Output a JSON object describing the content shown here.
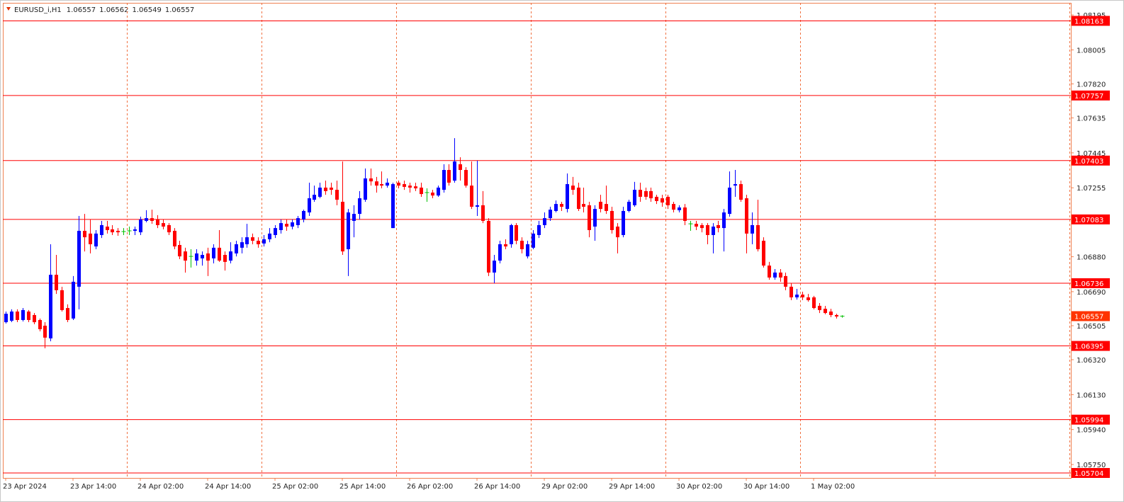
{
  "chart_data": {
    "type": "candlestick",
    "symbol": "EURUSD_i,H1",
    "up_color": "#0000ff",
    "down_color": "#ff0000",
    "doji_color": "#00c000",
    "level_color": "#ff0000",
    "price_label_color": "#ff3300",
    "grid": true,
    "ylim": [
      1.05677,
      1.08261
    ],
    "yticks": [
      1.08195,
      1.08005,
      {
        "value": 1.0782,
        "label": "1.07820"
      },
      1.07635,
      1.07445,
      1.07255,
      {
        "value": 1.0688,
        "label": "1.06880"
      },
      {
        "value": 1.0669,
        "label": "1.06690"
      },
      1.06505,
      {
        "value": 1.0632,
        "label": "1.06320"
      },
      {
        "value": 1.0613,
        "label": "1.06130"
      },
      {
        "value": 1.0594,
        "label": "1.05940"
      },
      {
        "value": 1.0575,
        "label": "1.05750"
      }
    ],
    "levels": [
      1.08163,
      1.07757,
      1.07403,
      1.07083,
      1.06736,
      1.06395,
      1.05994,
      1.05704
    ],
    "categories": [
      "23 Apr 2024",
      null,
      null,
      null,
      null,
      null,
      null,
      null,
      null,
      null,
      null,
      null,
      "23 Apr 14:00",
      null,
      null,
      null,
      null,
      null,
      null,
      null,
      null,
      null,
      null,
      null,
      "24 Apr 02:00",
      null,
      null,
      null,
      null,
      null,
      null,
      null,
      null,
      null,
      null,
      null,
      "24 Apr 14:00",
      null,
      null,
      null,
      null,
      null,
      null,
      null,
      null,
      null,
      null,
      null,
      "25 Apr 02:00",
      null,
      null,
      null,
      null,
      null,
      null,
      null,
      null,
      null,
      null,
      null,
      "25 Apr 14:00",
      null,
      null,
      null,
      null,
      null,
      null,
      null,
      null,
      null,
      null,
      null,
      "26 Apr 02:00",
      null,
      null,
      null,
      null,
      null,
      null,
      null,
      null,
      null,
      null,
      null,
      "26 Apr 14:00",
      null,
      null,
      null,
      null,
      null,
      null,
      null,
      null,
      null,
      null,
      null,
      "29 Apr 02:00",
      null,
      null,
      null,
      null,
      null,
      null,
      null,
      null,
      null,
      null,
      null,
      "29 Apr 14:00",
      null,
      null,
      null,
      null,
      null,
      null,
      null,
      null,
      null,
      null,
      null,
      "30 Apr 02:00",
      null,
      null,
      null,
      null,
      null,
      null,
      null,
      null,
      null,
      null,
      null,
      "30 Apr 14:00",
      null,
      null,
      null,
      null,
      null,
      null,
      null,
      null,
      null,
      null,
      null,
      "1 May 02:00",
      null,
      null,
      null,
      null,
      null
    ],
    "open": [
      1.06524,
      1.06532,
      1.06582,
      1.06536,
      1.06582,
      1.06563,
      1.06536,
      1.06505,
      1.06436,
      1.06782,
      1.06698,
      1.06601,
      1.06544,
      1.06717,
      1.07021,
      1.07006,
      1.06936,
      1.06998,
      1.07044,
      1.07029,
      1.07021,
      1.07017,
      1.07021,
      1.07021,
      1.07013,
      1.07075,
      1.0709,
      1.07083,
      1.07063,
      1.07052,
      1.07021,
      1.06944,
      1.06909,
      1.06882,
      1.06859,
      1.06871,
      1.06898,
      1.06871,
      1.06929,
      1.0689,
      1.06859,
      1.06898,
      1.06929,
      1.06948,
      1.06986,
      1.06967,
      1.06952,
      1.06975,
      1.06998,
      1.07025,
      1.07059,
      1.07044,
      1.07052,
      1.07083,
      1.07121,
      1.0719,
      1.07206,
      1.07256,
      1.07256,
      1.07244,
      1.07179,
      1.06921,
      1.07075,
      1.07113,
      1.0719,
      1.07306,
      1.0729,
      1.07275,
      1.07267,
      1.07036,
      1.07283,
      1.07275,
      1.07267,
      1.07263,
      1.07256,
      1.07229,
      1.07229,
      1.07213,
      1.07244,
      1.07352,
      1.07294,
      1.07383,
      1.07352,
      1.07267,
      1.07152,
      1.0716,
      1.07075,
      1.06794,
      1.06859,
      1.06948,
      1.06948,
      1.07052,
      1.06967,
      1.06882,
      1.06929,
      1.06998,
      1.07052,
      1.0709,
      1.07129,
      1.07167,
      1.0714,
      1.07267,
      1.07256,
      1.07167,
      1.0716,
      1.07044,
      1.07179,
      1.07167,
      1.07129,
      1.07044,
      1.06998,
      1.07129,
      1.0716,
      1.07244,
      1.07237,
      1.07237,
      1.07206,
      1.07198,
      1.07206,
      1.07167,
      1.07133,
      1.07148,
      1.07059,
      1.07059,
      1.07052,
      1.07052,
      1.06998,
      1.07052,
      1.07036,
      1.07113,
      1.07267,
      1.07275,
      1.07198,
      1.07006,
      1.07052,
      1.06967,
      1.06832,
      1.06767,
      1.06794,
      1.06775,
      1.06717,
      1.06659,
      1.06674,
      1.06659,
      1.06659,
      1.06613,
      1.06597,
      1.06582,
      1.06563,
      1.06557
    ],
    "high": [
      1.06582,
      1.06594,
      1.06594,
      1.06601,
      1.0659,
      1.06574,
      1.06544,
      1.06524,
      1.06948,
      1.0689,
      1.06717,
      1.06621,
      1.06775,
      1.07102,
      1.07113,
      1.07083,
      1.07025,
      1.07075,
      1.07075,
      1.07052,
      1.07036,
      1.07036,
      1.07044,
      1.07044,
      1.07098,
      1.07133,
      1.07136,
      1.07106,
      1.07083,
      1.07063,
      1.07036,
      1.06967,
      1.06929,
      1.06921,
      1.06921,
      1.06909,
      1.06929,
      1.06948,
      1.07025,
      1.06909,
      1.06959,
      1.06967,
      1.06986,
      1.07059,
      1.07006,
      1.06986,
      1.06998,
      1.07036,
      1.07052,
      1.07083,
      1.07083,
      1.07083,
      1.07102,
      1.07136,
      1.07283,
      1.07267,
      1.07283,
      1.07294,
      1.07283,
      1.07294,
      1.07398,
      1.0714,
      1.0716,
      1.07237,
      1.0736,
      1.0736,
      1.07314,
      1.07344,
      1.07306,
      1.07283,
      1.07294,
      1.07294,
      1.07283,
      1.07283,
      1.07283,
      1.07252,
      1.07244,
      1.07267,
      1.07383,
      1.07383,
      1.07525,
      1.07421,
      1.07367,
      1.07398,
      1.07402,
      1.07237,
      1.0709,
      1.0689,
      1.06967,
      1.06975,
      1.07059,
      1.07063,
      1.06986,
      1.06967,
      1.07025,
      1.07075,
      1.07121,
      1.07152,
      1.07186,
      1.07179,
      1.07333,
      1.07314,
      1.07283,
      1.07256,
      1.07179,
      1.0716,
      1.07217,
      1.07267,
      1.07152,
      1.07063,
      1.07152,
      1.0719,
      1.07287,
      1.07283,
      1.07256,
      1.07256,
      1.07217,
      1.07217,
      1.07217,
      1.07179,
      1.0716,
      1.07167,
      1.07075,
      1.07075,
      1.07063,
      1.07063,
      1.07063,
      1.07075,
      1.0714,
      1.07344,
      1.07352,
      1.07294,
      1.07217,
      1.07121,
      1.0719,
      1.06986,
      1.06852,
      1.06813,
      1.06813,
      1.06794,
      1.06736,
      1.06705,
      1.0669,
      1.06678,
      1.06667,
      1.06628,
      1.06613,
      1.06597,
      1.0657,
      1.06562
    ],
    "low": [
      1.06517,
      1.06524,
      1.06524,
      1.06528,
      1.06524,
      1.06513,
      1.06474,
      1.06382,
      1.0642,
      1.06678,
      1.06582,
      1.06524,
      1.06536,
      1.06594,
      1.06909,
      1.06898,
      1.06921,
      1.06982,
      1.07006,
      1.06998,
      1.06994,
      1.06998,
      1.06998,
      1.06998,
      1.06998,
      1.07067,
      1.07059,
      1.07036,
      1.07029,
      1.06998,
      1.06921,
      1.06867,
      1.06794,
      1.06821,
      1.06832,
      1.06832,
      1.06775,
      1.06844,
      1.06852,
      1.06805,
      1.06844,
      1.06882,
      1.06898,
      1.06929,
      1.06948,
      1.06929,
      1.06936,
      1.06959,
      1.06982,
      1.07006,
      1.07021,
      1.07029,
      1.07036,
      1.07067,
      1.07102,
      1.07179,
      1.07198,
      1.07217,
      1.07217,
      1.0716,
      1.0689,
      1.06775,
      1.06986,
      1.07083,
      1.07179,
      1.07267,
      1.07229,
      1.07252,
      1.07256,
      1.07036,
      1.07252,
      1.07244,
      1.07229,
      1.07237,
      1.07206,
      1.07179,
      1.07198,
      1.07206,
      1.07229,
      1.07267,
      1.07283,
      1.07294,
      1.07256,
      1.0714,
      1.07102,
      1.07063,
      1.06775,
      1.06736,
      1.06844,
      1.06921,
      1.06929,
      1.06948,
      1.06898,
      1.06871,
      1.06921,
      1.06982,
      1.07036,
      1.07075,
      1.07121,
      1.07129,
      1.07121,
      1.07217,
      1.07129,
      1.07121,
      1.06986,
      1.06967,
      1.07121,
      1.07113,
      1.07006,
      1.06898,
      1.06986,
      1.07121,
      1.07152,
      1.07179,
      1.0719,
      1.07179,
      1.07167,
      1.07152,
      1.0714,
      1.07121,
      1.07121,
      1.07052,
      1.07021,
      1.07025,
      1.07013,
      1.06948,
      1.06898,
      1.07013,
      1.06909,
      1.07098,
      1.07206,
      1.07179,
      1.06898,
      1.06948,
      1.06909,
      1.06821,
      1.06755,
      1.06755,
      1.06744,
      1.06698,
      1.06644,
      1.06647,
      1.06644,
      1.06636,
      1.06594,
      1.06574,
      1.06567,
      1.06551,
      1.06544,
      1.06549
    ],
    "close": [
      1.0657,
      1.06582,
      1.06536,
      1.0659,
      1.06536,
      1.06524,
      1.06486,
      1.0644,
      1.06782,
      1.06698,
      1.0659,
      1.06536,
      1.06744,
      1.07021,
      1.06986,
      1.06948,
      1.07006,
      1.07052,
      1.07025,
      1.07013,
      1.07013,
      1.07017,
      1.07021,
      1.07029,
      1.07083,
      1.0709,
      1.07075,
      1.07052,
      1.07044,
      1.07013,
      1.06936,
      1.06882,
      1.06859,
      1.06882,
      1.06898,
      1.0689,
      1.06859,
      1.06929,
      1.06859,
      1.06852,
      1.06909,
      1.06948,
      1.06959,
      1.06986,
      1.06967,
      1.06948,
      1.06975,
      1.07006,
      1.07036,
      1.07063,
      1.07044,
      1.07067,
      1.0709,
      1.07129,
      1.07198,
      1.07217,
      1.07256,
      1.07237,
      1.07244,
      1.0719,
      1.06909,
      1.07121,
      1.07113,
      1.07198,
      1.07306,
      1.0729,
      1.07267,
      1.07267,
      1.07283,
      1.07275,
      1.07267,
      1.0726,
      1.07256,
      1.07252,
      1.07221,
      1.07229,
      1.07213,
      1.07256,
      1.07352,
      1.07283,
      1.07398,
      1.07352,
      1.07267,
      1.07152,
      1.0716,
      1.07075,
      1.06794,
      1.06859,
      1.06948,
      1.06936,
      1.07052,
      1.06967,
      1.06921,
      1.06948,
      1.07006,
      1.07052,
      1.0709,
      1.07136,
      1.07167,
      1.07152,
      1.07275,
      1.07244,
      1.0714,
      1.07152,
      1.07025,
      1.0714,
      1.0714,
      1.07129,
      1.07025,
      1.06986,
      1.07129,
      1.07179,
      1.07244,
      1.07206,
      1.07206,
      1.07198,
      1.07183,
      1.07175,
      1.0716,
      1.07136,
      1.07148,
      1.07075,
      1.07059,
      1.07044,
      1.07036,
      1.06998,
      1.07044,
      1.07036,
      1.07121,
      1.07256,
      1.07275,
      1.0719,
      1.07006,
      1.07052,
      1.06921,
      1.06832,
      1.06767,
      1.06794,
      1.06767,
      1.06717,
      1.06659,
      1.06674,
      1.06659,
      1.06644,
      1.06601,
      1.0659,
      1.06574,
      1.06563,
      1.06555,
      1.06557
    ]
  }
}
